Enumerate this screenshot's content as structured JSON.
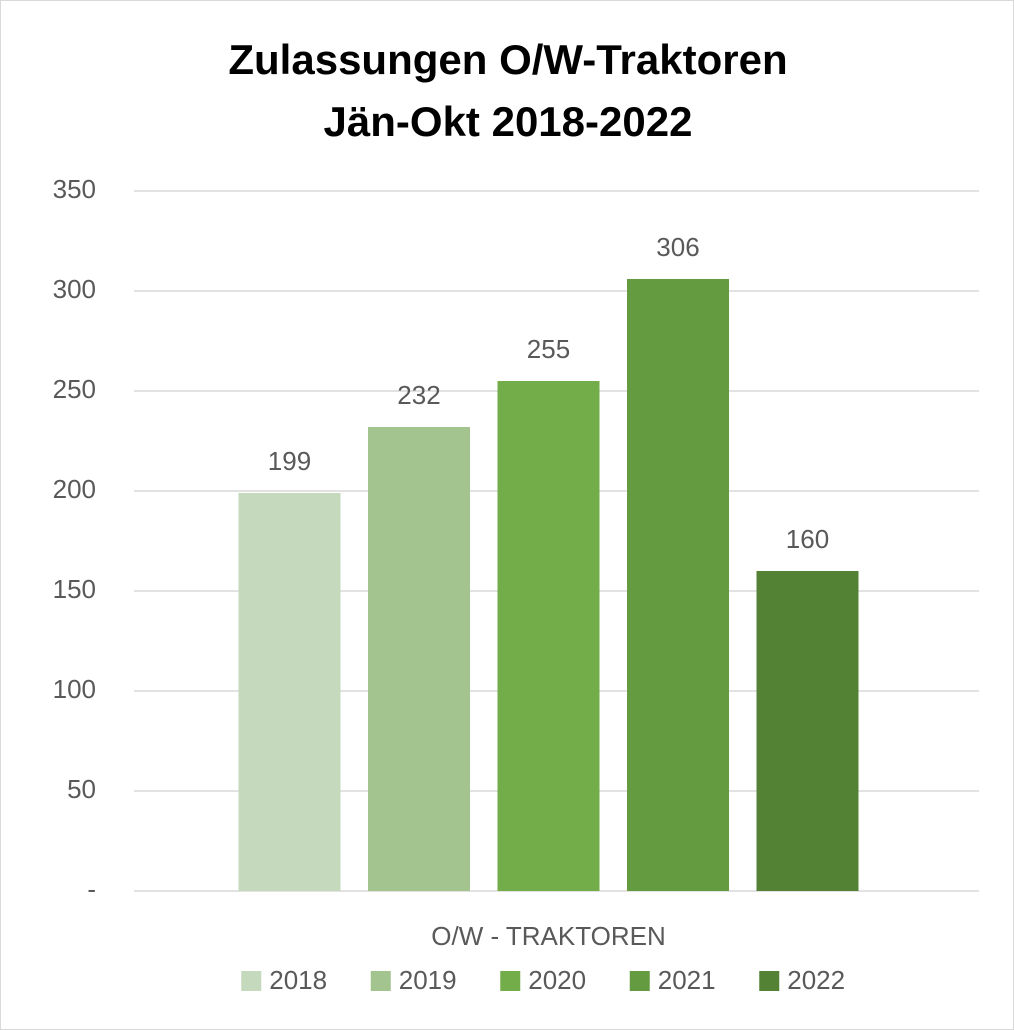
{
  "chart_data": {
    "type": "bar",
    "title": "Zulassungen O/W-Traktoren Jän-Okt 2018-2022",
    "categories": [
      "O/W - TRAKTOREN"
    ],
    "series": [
      {
        "name": "2018",
        "color": "#c5d9bc",
        "values": [
          199
        ]
      },
      {
        "name": "2019",
        "color": "#a3c48f",
        "values": [
          232
        ]
      },
      {
        "name": "2020",
        "color": "#72ad4a",
        "values": [
          255
        ]
      },
      {
        "name": "2021",
        "color": "#659b40",
        "values": [
          306
        ]
      },
      {
        "name": "2022",
        "color": "#548235",
        "values": [
          160
        ]
      }
    ],
    "ylim": [
      0,
      350
    ],
    "yticks": [
      {
        "value": 0,
        "label": "-"
      },
      50,
      100,
      150,
      200,
      250,
      300,
      350
    ],
    "grid": true,
    "legend": "bottom"
  }
}
